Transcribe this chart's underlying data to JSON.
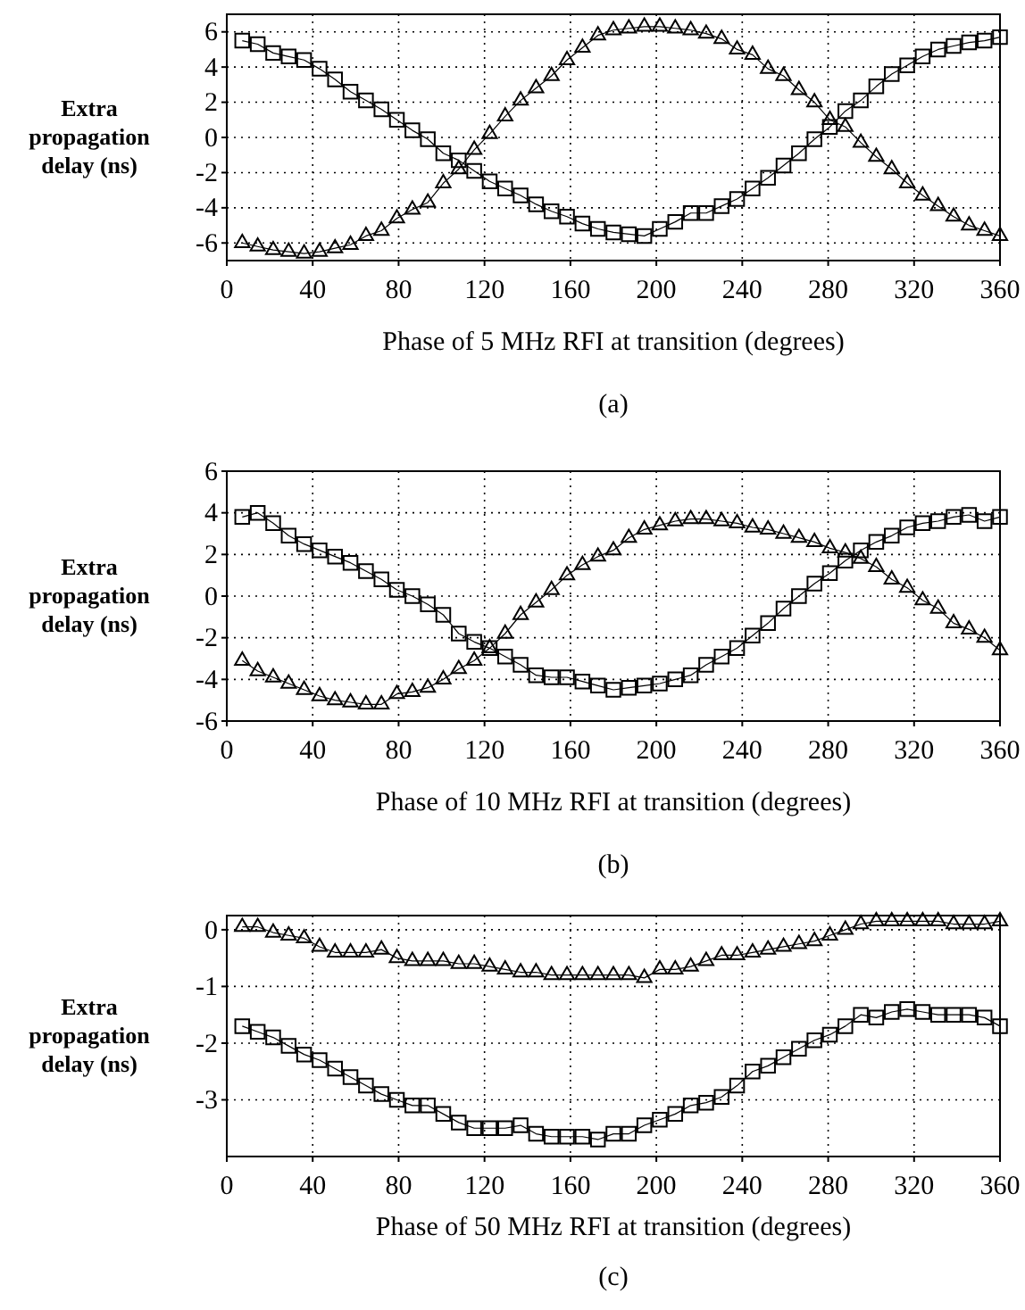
{
  "chart_data": [
    {
      "type": "line",
      "xlabel": "Phase of 5 MHz RFI at transition (degrees)",
      "ylabel": "Extra propagation delay (ns)",
      "annotations": [
        "(a)"
      ],
      "xlim": [
        0,
        360
      ],
      "xticks": [
        0,
        40,
        80,
        120,
        160,
        200,
        240,
        280,
        320,
        360
      ],
      "ylim": [
        -7,
        7
      ],
      "yticks": [
        -6,
        -4,
        -2,
        0,
        2,
        4,
        6
      ],
      "grid": true,
      "line_style": "solid",
      "x": [
        7.2,
        14.4,
        21.6,
        28.8,
        36,
        43.2,
        50.4,
        57.6,
        64.8,
        72,
        79.2,
        86.4,
        93.6,
        100.8,
        108,
        115.2,
        122.4,
        129.6,
        136.8,
        144,
        151.2,
        158.4,
        165.6,
        172.8,
        180,
        187.2,
        194.4,
        201.6,
        208.8,
        216,
        223.2,
        230.4,
        237.6,
        244.8,
        252,
        259.2,
        266.4,
        273.6,
        280.8,
        288,
        295.2,
        302.4,
        309.6,
        316.8,
        324,
        331.2,
        338.4,
        345.6,
        352.8,
        360
      ],
      "series": [
        {
          "color": "#000000",
          "marker": "square",
          "values": [
            5.5,
            5.3,
            4.8,
            4.6,
            4.4,
            3.9,
            3.3,
            2.6,
            2.1,
            1.6,
            1.0,
            0.4,
            -0.1,
            -0.9,
            -1.3,
            -1.9,
            -2.5,
            -2.9,
            -3.3,
            -3.8,
            -4.2,
            -4.5,
            -4.9,
            -5.2,
            -5.4,
            -5.5,
            -5.6,
            -5.2,
            -4.8,
            -4.3,
            -4.3,
            -3.9,
            -3.5,
            -2.9,
            -2.3,
            -1.6,
            -0.9,
            -0.1,
            0.6,
            1.5,
            2.1,
            2.9,
            3.6,
            4.1,
            4.6,
            5.0,
            5.2,
            5.4,
            5.5,
            5.7
          ]
        },
        {
          "color": "#000000",
          "marker": "triangle",
          "values": [
            -6.0,
            -6.2,
            -6.4,
            -6.5,
            -6.6,
            -6.5,
            -6.3,
            -6.1,
            -5.6,
            -5.3,
            -4.6,
            -4.1,
            -3.7,
            -2.6,
            -1.8,
            -0.7,
            0.2,
            1.2,
            2.1,
            2.8,
            3.5,
            4.4,
            5.1,
            5.8,
            6.1,
            6.2,
            6.3,
            6.3,
            6.2,
            6.1,
            5.9,
            5.6,
            5.0,
            4.7,
            3.9,
            3.5,
            2.7,
            2.0,
            1.0,
            0.6,
            -0.3,
            -1.1,
            -1.8,
            -2.6,
            -3.3,
            -3.9,
            -4.5,
            -5.0,
            -5.3,
            -5.6
          ]
        }
      ]
    },
    {
      "type": "line",
      "xlabel": "Phase of 10 MHz RFI at transition (degrees)",
      "ylabel": "Extra propagation delay (ns)",
      "annotations": [
        "(b)"
      ],
      "xlim": [
        0,
        360
      ],
      "xticks": [
        0,
        40,
        80,
        120,
        160,
        200,
        240,
        280,
        320,
        360
      ],
      "ylim": [
        -6,
        6
      ],
      "yticks": [
        -6,
        -4,
        -2,
        0,
        2,
        4,
        6
      ],
      "grid": true,
      "line_style": "solid",
      "x": [
        7.2,
        14.4,
        21.6,
        28.8,
        36,
        43.2,
        50.4,
        57.6,
        64.8,
        72,
        79.2,
        86.4,
        93.6,
        100.8,
        108,
        115.2,
        122.4,
        129.6,
        136.8,
        144,
        151.2,
        158.4,
        165.6,
        172.8,
        180,
        187.2,
        194.4,
        201.6,
        208.8,
        216,
        223.2,
        230.4,
        237.6,
        244.8,
        252,
        259.2,
        266.4,
        273.6,
        280.8,
        288,
        295.2,
        302.4,
        309.6,
        316.8,
        324,
        331.2,
        338.4,
        345.6,
        352.8,
        360
      ],
      "series": [
        {
          "color": "#000000",
          "marker": "square",
          "values": [
            3.8,
            4.0,
            3.5,
            2.9,
            2.5,
            2.2,
            1.9,
            1.6,
            1.2,
            0.8,
            0.3,
            0.0,
            -0.4,
            -0.9,
            -1.8,
            -2.2,
            -2.5,
            -2.9,
            -3.3,
            -3.8,
            -3.9,
            -3.9,
            -4.1,
            -4.3,
            -4.5,
            -4.4,
            -4.3,
            -4.2,
            -4.0,
            -3.8,
            -3.3,
            -2.9,
            -2.5,
            -1.9,
            -1.3,
            -0.6,
            0.0,
            0.6,
            1.1,
            1.7,
            2.2,
            2.6,
            2.9,
            3.3,
            3.5,
            3.6,
            3.8,
            3.9,
            3.6,
            3.8
          ]
        },
        {
          "color": "#000000",
          "marker": "triangle",
          "values": [
            -3.1,
            -3.6,
            -3.9,
            -4.2,
            -4.5,
            -4.8,
            -5.0,
            -5.1,
            -5.2,
            -5.2,
            -4.7,
            -4.6,
            -4.4,
            -4.0,
            -3.5,
            -3.1,
            -2.5,
            -1.8,
            -0.9,
            -0.3,
            0.3,
            1.0,
            1.5,
            1.9,
            2.2,
            2.8,
            3.2,
            3.4,
            3.6,
            3.7,
            3.7,
            3.6,
            3.5,
            3.3,
            3.2,
            3.0,
            2.8,
            2.6,
            2.3,
            2.1,
            1.8,
            1.4,
            0.8,
            0.4,
            -0.2,
            -0.6,
            -1.3,
            -1.6,
            -2.0,
            -2.6
          ]
        }
      ]
    },
    {
      "type": "line",
      "xlabel": "Phase of 50 MHz RFI at transition (degrees)",
      "ylabel": "Extra propagation delay (ns)",
      "annotations": [
        "(c)"
      ],
      "xlim": [
        0,
        360
      ],
      "xticks": [
        0,
        40,
        80,
        120,
        160,
        200,
        240,
        280,
        320,
        360
      ],
      "ylim": [
        -4,
        0.25
      ],
      "yticks": [
        -3,
        -2,
        -1,
        0
      ],
      "grid": true,
      "line_style": "solid",
      "x": [
        7.2,
        14.4,
        21.6,
        28.8,
        36,
        43.2,
        50.4,
        57.6,
        64.8,
        72,
        79.2,
        86.4,
        93.6,
        100.8,
        108,
        115.2,
        122.4,
        129.6,
        136.8,
        144,
        151.2,
        158.4,
        165.6,
        172.8,
        180,
        187.2,
        194.4,
        201.6,
        208.8,
        216,
        223.2,
        230.4,
        237.6,
        244.8,
        252,
        259.2,
        266.4,
        273.6,
        280.8,
        288,
        295.2,
        302.4,
        309.6,
        316.8,
        324,
        331.2,
        338.4,
        345.6,
        352.8,
        360
      ],
      "series": [
        {
          "color": "#000000",
          "marker": "triangle",
          "values": [
            0.05,
            0.05,
            -0.05,
            -0.1,
            -0.15,
            -0.3,
            -0.4,
            -0.4,
            -0.4,
            -0.35,
            -0.5,
            -0.55,
            -0.55,
            -0.55,
            -0.6,
            -0.6,
            -0.65,
            -0.7,
            -0.75,
            -0.75,
            -0.8,
            -0.8,
            -0.8,
            -0.8,
            -0.8,
            -0.8,
            -0.85,
            -0.7,
            -0.7,
            -0.65,
            -0.55,
            -0.45,
            -0.45,
            -0.4,
            -0.35,
            -0.3,
            -0.25,
            -0.2,
            -0.1,
            0.0,
            0.1,
            0.15,
            0.15,
            0.15,
            0.15,
            0.15,
            0.1,
            0.1,
            0.1,
            0.15
          ]
        },
        {
          "color": "#000000",
          "marker": "square",
          "values": [
            -1.7,
            -1.8,
            -1.9,
            -2.05,
            -2.2,
            -2.3,
            -2.45,
            -2.6,
            -2.75,
            -2.9,
            -3.0,
            -3.1,
            -3.1,
            -3.25,
            -3.4,
            -3.5,
            -3.5,
            -3.5,
            -3.45,
            -3.6,
            -3.65,
            -3.65,
            -3.65,
            -3.7,
            -3.6,
            -3.6,
            -3.45,
            -3.35,
            -3.25,
            -3.1,
            -3.05,
            -2.95,
            -2.75,
            -2.5,
            -2.4,
            -2.25,
            -2.1,
            -1.95,
            -1.85,
            -1.7,
            -1.5,
            -1.55,
            -1.45,
            -1.4,
            -1.45,
            -1.5,
            -1.5,
            -1.5,
            -1.55,
            -1.7
          ]
        }
      ]
    }
  ]
}
